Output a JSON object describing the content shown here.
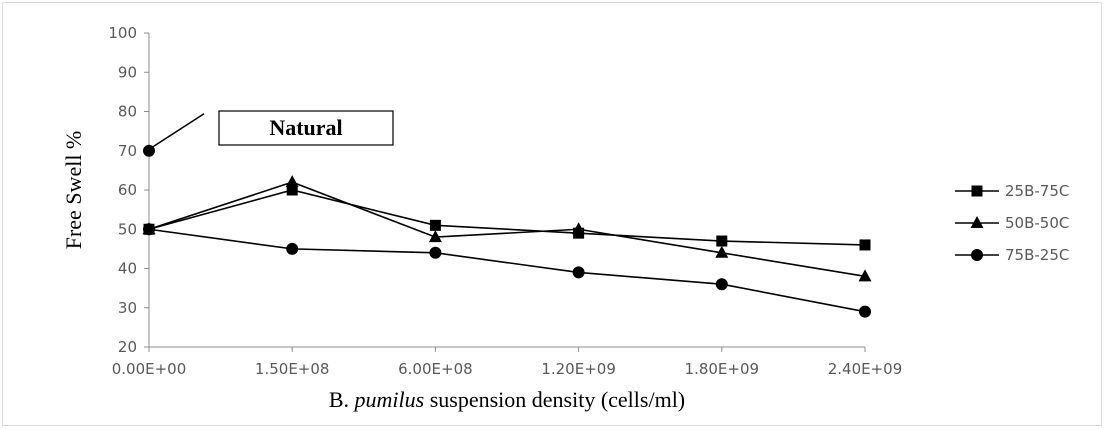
{
  "chart_data": {
    "type": "line",
    "title": "",
    "xlabel_prefix": "B. ",
    "xlabel_italic": "pumilus",
    "xlabel_suffix": " suspension density (cells/ml)",
    "ylabel": "Free Swell %",
    "categories": [
      "0.00E+00",
      "1.50E+08",
      "6.00E+08",
      "1.20E+09",
      "1.80E+09",
      "2.40E+09"
    ],
    "ylim": [
      20,
      100
    ],
    "yticks": [
      20,
      30,
      40,
      50,
      60,
      70,
      80,
      90,
      100
    ],
    "grid": false,
    "legend_position": "right",
    "series": [
      {
        "name": "25B-75C",
        "marker": "square",
        "values": [
          50,
          60,
          51,
          49,
          47,
          46
        ]
      },
      {
        "name": "50B-50C",
        "marker": "triangle",
        "values": [
          50,
          62,
          48,
          50,
          44,
          38
        ]
      },
      {
        "name": "75B-25C",
        "marker": "circle",
        "values": [
          50,
          45,
          44,
          39,
          36,
          29
        ]
      }
    ],
    "annotation": {
      "label": "Natural",
      "category_index": 0,
      "value": 70
    }
  }
}
